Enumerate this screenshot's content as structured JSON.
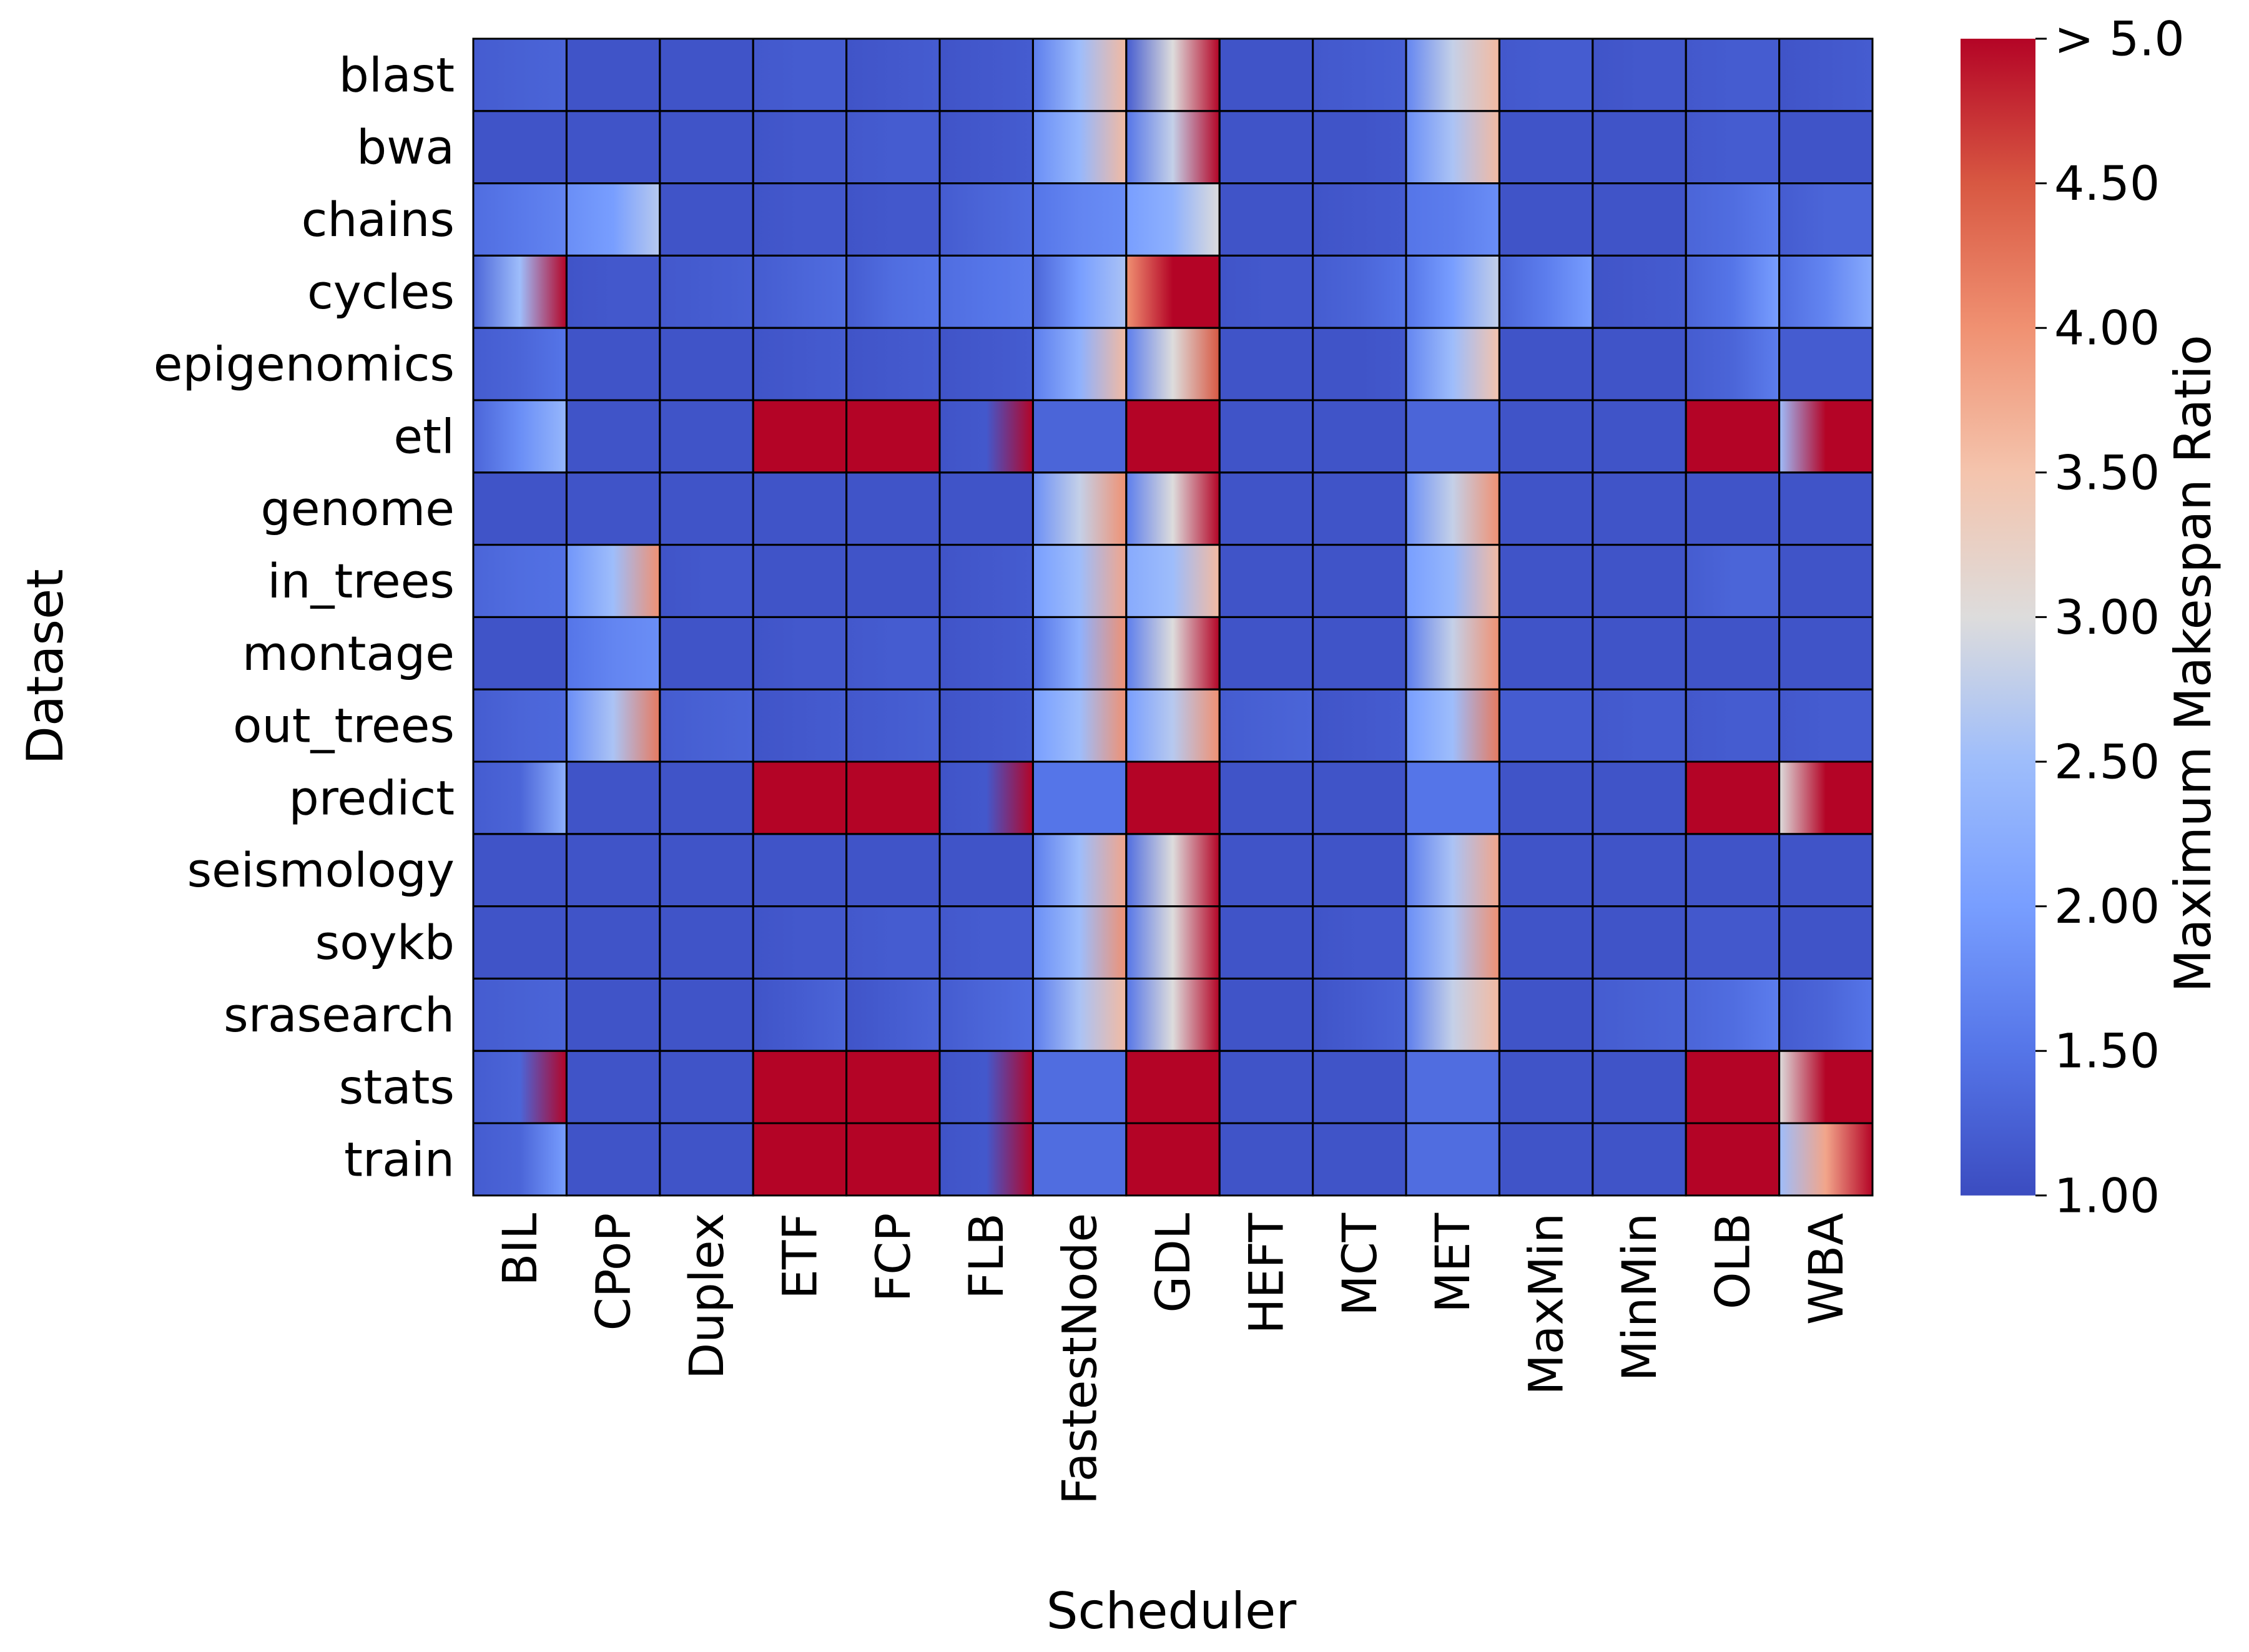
{
  "chart_data": {
    "type": "heatmap",
    "xlabel": "Scheduler",
    "ylabel": "Dataset",
    "colorbar": {
      "label": "Maximum Makespan Ratio",
      "range": [
        1.0,
        5.0
      ],
      "ticks": [
        1.0,
        1.5,
        2.0,
        2.5,
        3.0,
        3.5,
        4.0,
        4.5,
        5.0
      ],
      "tick_labels": [
        "1.00",
        "1.50",
        "2.00",
        "2.50",
        "3.00",
        "3.50",
        "4.00",
        "4.50",
        "> 5.0"
      ],
      "colormap": "coolwarm",
      "low_color": "#3b4cc0",
      "mid_color": "#dddcdc",
      "high_color": "#b40426"
    },
    "x_categories": [
      "BIL",
      "CPoP",
      "Duplex",
      "ETF",
      "FCP",
      "FLB",
      "FastestNode",
      "GDL",
      "HEFT",
      "MCT",
      "MET",
      "MaxMin",
      "MinMin",
      "OLB",
      "WBA"
    ],
    "y_categories": [
      "blast",
      "bwa",
      "chains",
      "cycles",
      "epigenomics",
      "etl",
      "genome",
      "in_trees",
      "montage",
      "out_trees",
      "predict",
      "seismology",
      "soykb",
      "srasearch",
      "stats",
      "train"
    ],
    "cell_gradients_note": "each cell shows the distribution of ratios as a left-to-right gradient; values given as [start, mid, end]",
    "values": [
      [
        [
          1.2,
          1.25,
          1.3
        ],
        [
          1.1,
          1.1,
          1.1
        ],
        [
          1.1,
          1.1,
          1.1
        ],
        [
          1.15,
          1.2,
          1.2
        ],
        [
          1.1,
          1.15,
          1.2
        ],
        [
          1.1,
          1.15,
          1.2
        ],
        [
          1.6,
          2.5,
          3.6
        ],
        [
          1.2,
          3.0,
          5.0
        ],
        [
          1.1,
          1.1,
          1.1
        ],
        [
          1.15,
          1.2,
          1.25
        ],
        [
          1.7,
          2.8,
          3.6
        ],
        [
          1.15,
          1.2,
          1.2
        ],
        [
          1.1,
          1.15,
          1.15
        ],
        [
          1.15,
          1.2,
          1.2
        ],
        [
          1.1,
          1.15,
          1.2
        ]
      ],
      [
        [
          1.1,
          1.1,
          1.1
        ],
        [
          1.1,
          1.1,
          1.1
        ],
        [
          1.1,
          1.1,
          1.1
        ],
        [
          1.1,
          1.15,
          1.15
        ],
        [
          1.15,
          1.2,
          1.2
        ],
        [
          1.1,
          1.15,
          1.2
        ],
        [
          1.8,
          2.4,
          3.6
        ],
        [
          1.5,
          2.8,
          5.0
        ],
        [
          1.1,
          1.1,
          1.1
        ],
        [
          1.1,
          1.1,
          1.15
        ],
        [
          1.8,
          2.6,
          3.6
        ],
        [
          1.1,
          1.1,
          1.1
        ],
        [
          1.1,
          1.1,
          1.1
        ],
        [
          1.15,
          1.2,
          1.2
        ],
        [
          1.1,
          1.1,
          1.1
        ]
      ],
      [
        [
          1.4,
          1.55,
          1.7
        ],
        [
          1.8,
          2.0,
          2.7
        ],
        [
          1.1,
          1.1,
          1.1
        ],
        [
          1.1,
          1.15,
          1.15
        ],
        [
          1.1,
          1.15,
          1.15
        ],
        [
          1.2,
          1.3,
          1.4
        ],
        [
          1.5,
          1.7,
          1.8
        ],
        [
          2.0,
          2.3,
          3.0
        ],
        [
          1.1,
          1.1,
          1.1
        ],
        [
          1.1,
          1.15,
          1.2
        ],
        [
          1.5,
          1.6,
          1.8
        ],
        [
          1.1,
          1.1,
          1.1
        ],
        [
          1.1,
          1.1,
          1.1
        ],
        [
          1.3,
          1.4,
          1.6
        ],
        [
          1.2,
          1.3,
          1.3
        ]
      ],
      [
        [
          1.3,
          2.5,
          5.0
        ],
        [
          1.1,
          1.15,
          1.15
        ],
        [
          1.15,
          1.2,
          1.25
        ],
        [
          1.2,
          1.3,
          1.4
        ],
        [
          1.2,
          1.4,
          1.5
        ],
        [
          1.4,
          1.5,
          1.6
        ],
        [
          1.3,
          2.0,
          2.6
        ],
        [
          4.0,
          5.0,
          5.0
        ],
        [
          1.1,
          1.15,
          1.15
        ],
        [
          1.2,
          1.3,
          1.5
        ],
        [
          1.5,
          2.0,
          2.8
        ],
        [
          1.3,
          1.6,
          2.0
        ],
        [
          1.1,
          1.15,
          1.2
        ],
        [
          1.3,
          1.5,
          2.0
        ],
        [
          1.4,
          1.7,
          2.2
        ]
      ],
      [
        [
          1.2,
          1.3,
          1.5
        ],
        [
          1.1,
          1.1,
          1.1
        ],
        [
          1.1,
          1.1,
          1.1
        ],
        [
          1.1,
          1.15,
          1.2
        ],
        [
          1.1,
          1.15,
          1.2
        ],
        [
          1.1,
          1.15,
          1.2
        ],
        [
          1.6,
          2.3,
          3.6
        ],
        [
          1.6,
          3.0,
          4.5
        ],
        [
          1.1,
          1.1,
          1.1
        ],
        [
          1.1,
          1.1,
          1.15
        ],
        [
          1.7,
          2.5,
          3.5
        ],
        [
          1.1,
          1.1,
          1.1
        ],
        [
          1.1,
          1.1,
          1.1
        ],
        [
          1.2,
          1.3,
          1.6
        ],
        [
          1.2,
          1.2,
          1.2
        ]
      ],
      [
        [
          1.3,
          1.8,
          2.4
        ],
        [
          1.1,
          1.1,
          1.1
        ],
        [
          1.1,
          1.1,
          1.1
        ],
        [
          5.0,
          5.0,
          5.0
        ],
        [
          5.0,
          5.0,
          5.0
        ],
        [
          1.1,
          1.15,
          5.0
        ],
        [
          1.3,
          1.3,
          1.3
        ],
        [
          5.0,
          5.0,
          5.0
        ],
        [
          1.1,
          1.1,
          1.1
        ],
        [
          1.1,
          1.1,
          1.1
        ],
        [
          1.3,
          1.3,
          1.3
        ],
        [
          1.1,
          1.1,
          1.1
        ],
        [
          1.1,
          1.1,
          1.1
        ],
        [
          5.0,
          5.0,
          5.0
        ],
        [
          2.5,
          5.0,
          5.0
        ]
      ],
      [
        [
          1.1,
          1.1,
          1.1
        ],
        [
          1.1,
          1.1,
          1.1
        ],
        [
          1.1,
          1.1,
          1.1
        ],
        [
          1.1,
          1.1,
          1.1
        ],
        [
          1.1,
          1.1,
          1.1
        ],
        [
          1.1,
          1.1,
          1.1
        ],
        [
          1.8,
          2.8,
          4.0
        ],
        [
          1.6,
          3.0,
          5.0
        ],
        [
          1.1,
          1.1,
          1.1
        ],
        [
          1.1,
          1.1,
          1.1
        ],
        [
          1.8,
          2.8,
          4.0
        ],
        [
          1.1,
          1.1,
          1.1
        ],
        [
          1.1,
          1.1,
          1.1
        ],
        [
          1.1,
          1.1,
          1.1
        ],
        [
          1.1,
          1.1,
          1.1
        ]
      ],
      [
        [
          1.3,
          1.4,
          1.45
        ],
        [
          1.9,
          2.5,
          4.0
        ],
        [
          1.1,
          1.15,
          1.15
        ],
        [
          1.1,
          1.1,
          1.1
        ],
        [
          1.1,
          1.1,
          1.1
        ],
        [
          1.1,
          1.15,
          1.2
        ],
        [
          2.0,
          2.5,
          3.8
        ],
        [
          2.2,
          2.5,
          3.6
        ],
        [
          1.1,
          1.1,
          1.1
        ],
        [
          1.1,
          1.1,
          1.1
        ],
        [
          2.0,
          2.4,
          3.6
        ],
        [
          1.1,
          1.1,
          1.1
        ],
        [
          1.1,
          1.1,
          1.1
        ],
        [
          1.2,
          1.3,
          1.3
        ],
        [
          1.1,
          1.1,
          1.1
        ]
      ],
      [
        [
          1.1,
          1.1,
          1.1
        ],
        [
          1.5,
          1.7,
          1.8
        ],
        [
          1.1,
          1.1,
          1.1
        ],
        [
          1.1,
          1.15,
          1.15
        ],
        [
          1.15,
          1.2,
          1.2
        ],
        [
          1.1,
          1.15,
          1.2
        ],
        [
          1.5,
          2.3,
          4.0
        ],
        [
          1.6,
          3.0,
          5.0
        ],
        [
          1.1,
          1.1,
          1.1
        ],
        [
          1.1,
          1.1,
          1.1
        ],
        [
          1.6,
          2.8,
          4.0
        ],
        [
          1.1,
          1.1,
          1.1
        ],
        [
          1.1,
          1.1,
          1.1
        ],
        [
          1.1,
          1.1,
          1.1
        ],
        [
          1.1,
          1.1,
          1.1
        ]
      ],
      [
        [
          1.2,
          1.3,
          1.35
        ],
        [
          1.8,
          2.6,
          4.2
        ],
        [
          1.2,
          1.25,
          1.3
        ],
        [
          1.1,
          1.15,
          1.2
        ],
        [
          1.15,
          1.2,
          1.25
        ],
        [
          1.1,
          1.15,
          1.2
        ],
        [
          2.0,
          2.5,
          4.0
        ],
        [
          2.0,
          2.7,
          4.0
        ],
        [
          1.2,
          1.25,
          1.3
        ],
        [
          1.1,
          1.15,
          1.2
        ],
        [
          2.0,
          2.5,
          4.2
        ],
        [
          1.2,
          1.2,
          1.2
        ],
        [
          1.15,
          1.2,
          1.2
        ],
        [
          1.15,
          1.2,
          1.2
        ],
        [
          1.15,
          1.2,
          1.2
        ]
      ],
      [
        [
          1.2,
          1.3,
          2.3
        ],
        [
          1.1,
          1.1,
          1.1
        ],
        [
          1.1,
          1.1,
          1.1
        ],
        [
          5.0,
          5.0,
          5.0
        ],
        [
          5.0,
          5.0,
          5.0
        ],
        [
          1.1,
          1.15,
          5.0
        ],
        [
          1.5,
          1.5,
          1.5
        ],
        [
          5.0,
          5.0,
          5.0
        ],
        [
          1.1,
          1.1,
          1.1
        ],
        [
          1.1,
          1.1,
          1.1
        ],
        [
          1.5,
          1.5,
          1.5
        ],
        [
          1.1,
          1.1,
          1.1
        ],
        [
          1.1,
          1.1,
          1.1
        ],
        [
          5.0,
          5.0,
          5.0
        ],
        [
          3.0,
          5.0,
          5.0
        ]
      ],
      [
        [
          1.1,
          1.1,
          1.1
        ],
        [
          1.1,
          1.1,
          1.1
        ],
        [
          1.1,
          1.1,
          1.1
        ],
        [
          1.1,
          1.1,
          1.1
        ],
        [
          1.1,
          1.1,
          1.1
        ],
        [
          1.1,
          1.1,
          1.1
        ],
        [
          1.6,
          2.5,
          3.8
        ],
        [
          1.4,
          3.0,
          5.0
        ],
        [
          1.1,
          1.1,
          1.1
        ],
        [
          1.1,
          1.1,
          1.1
        ],
        [
          1.6,
          2.6,
          3.8
        ],
        [
          1.1,
          1.1,
          1.1
        ],
        [
          1.1,
          1.1,
          1.1
        ],
        [
          1.1,
          1.1,
          1.1
        ],
        [
          1.1,
          1.1,
          1.1
        ]
      ],
      [
        [
          1.1,
          1.1,
          1.1
        ],
        [
          1.1,
          1.1,
          1.1
        ],
        [
          1.1,
          1.1,
          1.1
        ],
        [
          1.1,
          1.15,
          1.15
        ],
        [
          1.15,
          1.2,
          1.2
        ],
        [
          1.15,
          1.2,
          1.2
        ],
        [
          1.8,
          2.5,
          4.0
        ],
        [
          1.5,
          3.0,
          5.0
        ],
        [
          1.1,
          1.1,
          1.1
        ],
        [
          1.1,
          1.15,
          1.15
        ],
        [
          1.8,
          2.6,
          4.0
        ],
        [
          1.1,
          1.1,
          1.1
        ],
        [
          1.1,
          1.1,
          1.1
        ],
        [
          1.15,
          1.15,
          1.15
        ],
        [
          1.1,
          1.1,
          1.1
        ]
      ],
      [
        [
          1.2,
          1.25,
          1.3
        ],
        [
          1.1,
          1.1,
          1.1
        ],
        [
          1.1,
          1.1,
          1.1
        ],
        [
          1.1,
          1.2,
          1.3
        ],
        [
          1.1,
          1.2,
          1.3
        ],
        [
          1.2,
          1.3,
          1.4
        ],
        [
          1.6,
          2.6,
          3.6
        ],
        [
          1.5,
          3.0,
          5.0
        ],
        [
          1.1,
          1.1,
          1.1
        ],
        [
          1.1,
          1.2,
          1.3
        ],
        [
          1.6,
          2.8,
          3.6
        ],
        [
          1.1,
          1.1,
          1.1
        ],
        [
          1.2,
          1.25,
          1.3
        ],
        [
          1.3,
          1.4,
          1.6
        ],
        [
          1.2,
          1.3,
          1.5
        ]
      ],
      [
        [
          1.2,
          1.3,
          5.0
        ],
        [
          1.1,
          1.1,
          1.1
        ],
        [
          1.1,
          1.1,
          1.1
        ],
        [
          5.0,
          5.0,
          5.0
        ],
        [
          5.0,
          5.0,
          5.0
        ],
        [
          1.1,
          1.15,
          5.0
        ],
        [
          1.4,
          1.4,
          1.4
        ],
        [
          5.0,
          5.0,
          5.0
        ],
        [
          1.1,
          1.1,
          1.1
        ],
        [
          1.1,
          1.1,
          1.1
        ],
        [
          1.4,
          1.4,
          1.4
        ],
        [
          1.1,
          1.1,
          1.1
        ],
        [
          1.1,
          1.1,
          1.1
        ],
        [
          5.0,
          5.0,
          5.0
        ],
        [
          3.0,
          5.0,
          5.0
        ]
      ],
      [
        [
          1.2,
          1.3,
          2.0
        ],
        [
          1.1,
          1.1,
          1.1
        ],
        [
          1.1,
          1.1,
          1.1
        ],
        [
          5.0,
          5.0,
          5.0
        ],
        [
          5.0,
          5.0,
          5.0
        ],
        [
          1.1,
          1.15,
          5.0
        ],
        [
          1.4,
          1.4,
          1.4
        ],
        [
          5.0,
          5.0,
          5.0
        ],
        [
          1.1,
          1.1,
          1.1
        ],
        [
          1.1,
          1.1,
          1.1
        ],
        [
          1.4,
          1.4,
          1.4
        ],
        [
          1.1,
          1.1,
          1.1
        ],
        [
          1.1,
          1.1,
          1.1
        ],
        [
          5.0,
          5.0,
          5.0
        ],
        [
          2.5,
          3.8,
          5.0
        ]
      ]
    ]
  }
}
